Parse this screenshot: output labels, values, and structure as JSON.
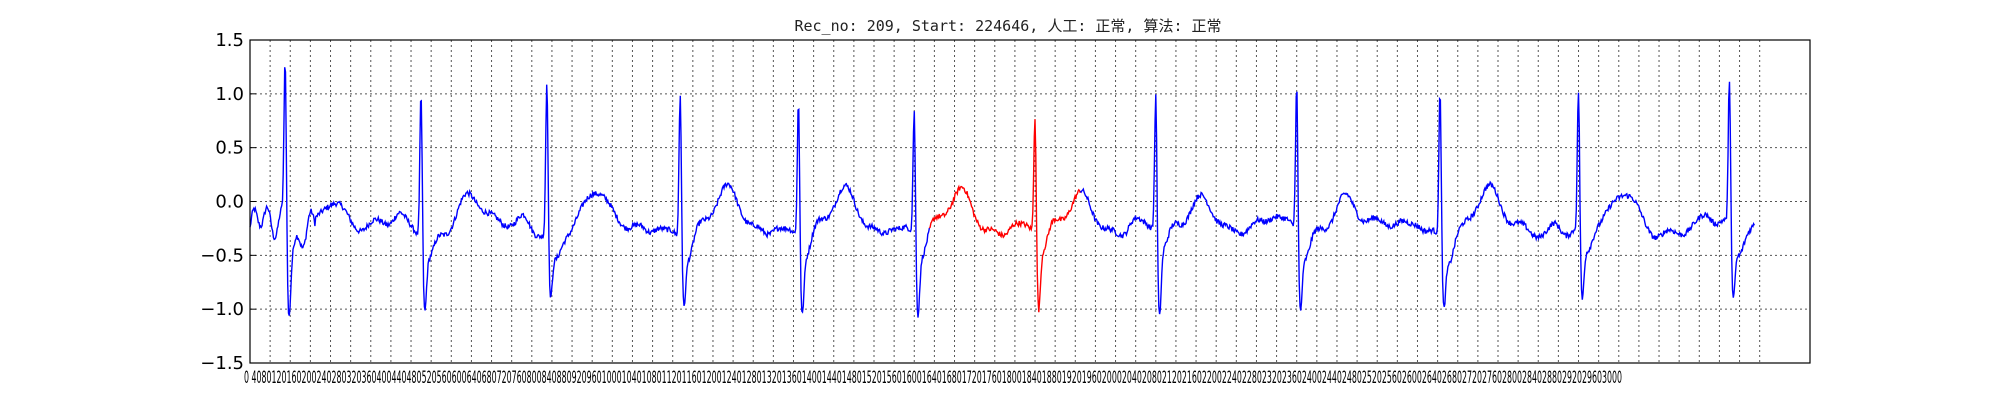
{
  "chart_data": {
    "type": "line",
    "title": "Rec_no: 209, Start: 224646, 人工: 正常, 算法: 正常",
    "xlim": [
      0,
      3100
    ],
    "ylim": [
      -1.5,
      1.5
    ],
    "grid": true,
    "yticks": [
      1.5,
      1.0,
      0.5,
      0.0,
      -0.5,
      -1.0,
      -1.5
    ],
    "ytick_labels": [
      "1.5",
      "1.0",
      "0.5",
      "0.0",
      "−0.5",
      "−1.0",
      "−1.5"
    ],
    "xticks": [
      0,
      40,
      80,
      120,
      160,
      200,
      240,
      280,
      320,
      360,
      400,
      440,
      480,
      520,
      560,
      600,
      640,
      680,
      720,
      760,
      800,
      840,
      880,
      920,
      960,
      1000,
      1040,
      1080,
      1120,
      1160,
      1200,
      1240,
      1280,
      1320,
      1360,
      1400,
      1440,
      1480,
      1520,
      1560,
      1600,
      1640,
      1680,
      1720,
      1760,
      1800,
      1840,
      1880,
      1920,
      1960,
      2000,
      2040,
      2080,
      2120,
      2160,
      2200,
      2240,
      2280,
      2320,
      2360,
      2400,
      2440,
      2480,
      2520,
      2560,
      2600,
      2640,
      2680,
      2720,
      2760,
      2800,
      2840,
      2880,
      2920,
      2960,
      3000
    ],
    "xtick_label_text": "0 4080120160200240280320360400440480520560600640680720760800840880920960100010401080112011601200124012801320136014001440148015201560160016401680172017601800184018801920196020002040208021202160220022402280232023602400244024802520256026002640268027202760280028402880292029603000",
    "series": [
      {
        "color": "#0000ff",
        "segment": "before",
        "x_range": [
          0,
          1350
        ]
      },
      {
        "color": "#ff0000",
        "segment": "highlight",
        "x_range": [
          1350,
          1650
        ]
      },
      {
        "color": "#0000ff",
        "segment": "after",
        "x_range": [
          1650,
          2990
        ]
      }
    ],
    "beats": [
      {
        "x": 70,
        "r": 1.35,
        "s": -0.98
      },
      {
        "x": 340,
        "r": 1.2,
        "s": -0.92
      },
      {
        "x": 590,
        "r": 1.27,
        "s": -0.82
      },
      {
        "x": 855,
        "r": 1.19,
        "s": -0.85
      },
      {
        "x": 1090,
        "r": 1.12,
        "s": -0.95
      },
      {
        "x": 1320,
        "r": 1.0,
        "s": -0.97
      },
      {
        "x": 1560,
        "r": 0.94,
        "s": -0.95
      },
      {
        "x": 1800,
        "r": 1.12,
        "s": -1.05
      },
      {
        "x": 2080,
        "r": 1.23,
        "s": -0.92
      },
      {
        "x": 2365,
        "r": 1.22,
        "s": -0.85
      },
      {
        "x": 2640,
        "r": 1.13,
        "s": -0.9
      },
      {
        "x": 2940,
        "r": 1.2,
        "s": -0.9
      }
    ],
    "baseline": -0.25
  }
}
